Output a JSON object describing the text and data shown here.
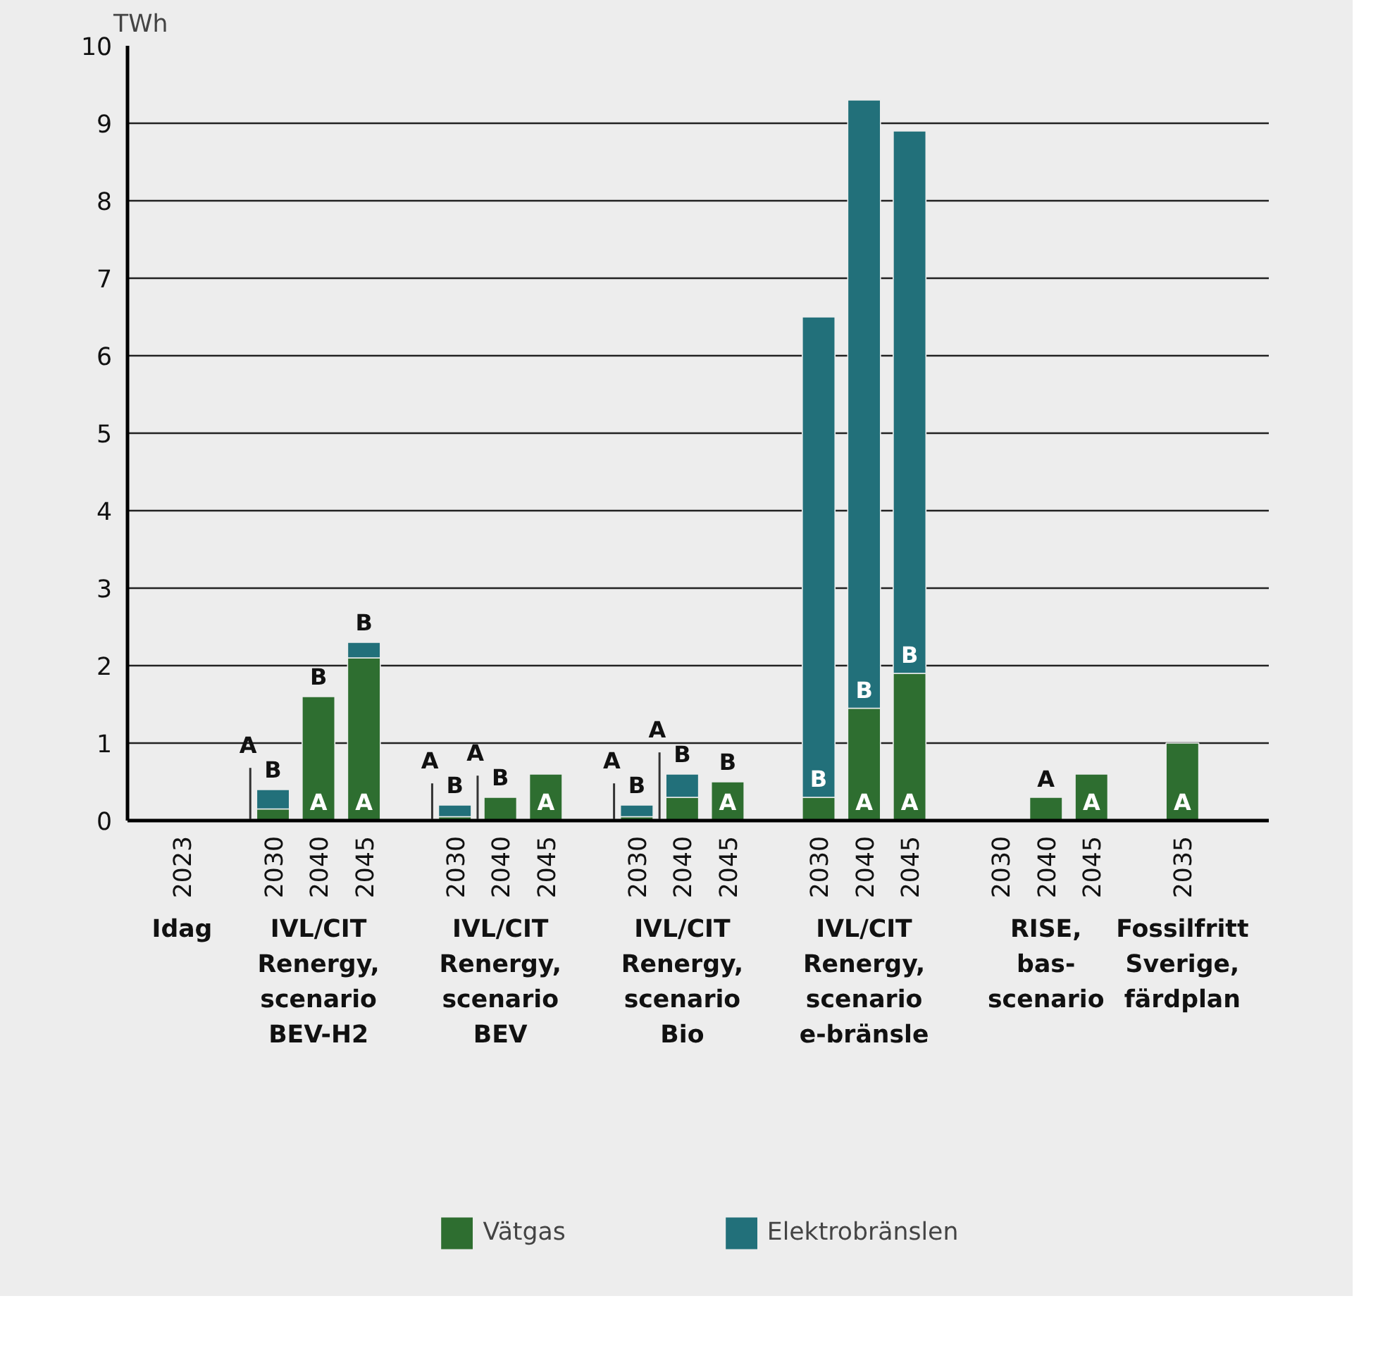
{
  "chart_data": {
    "type": "bar",
    "stacked": true,
    "ylabel": "TWh",
    "categories": [
      "2023",
      null,
      "2030",
      "2040",
      "2045",
      null,
      "2030",
      "2040",
      "2045",
      null,
      "2030",
      "2040",
      "2045",
      null,
      "2030",
      "2040",
      "2045",
      null,
      "2030",
      "2040",
      "2045",
      null,
      "2035"
    ],
    "series": [
      {
        "name": "Vätgas",
        "color": "#2e6e30",
        "values": [
          null,
          null,
          0.15,
          1.6,
          2.1,
          null,
          0.05,
          0.3,
          0.6,
          null,
          0.05,
          0.3,
          0.5,
          null,
          0.3,
          1.45,
          1.9,
          null,
          null,
          0.3,
          0.6,
          null,
          1.0
        ]
      },
      {
        "name": "Elektrobränslen",
        "color": "#22707a",
        "values": [
          null,
          null,
          0.25,
          0,
          0.2,
          null,
          0.15,
          0,
          null,
          null,
          0.15,
          0.3,
          0,
          null,
          6.2,
          7.85,
          7.0,
          null,
          null,
          null,
          null,
          null,
          null
        ]
      }
    ],
    "ylim": [
      0,
      10
    ],
    "yticks": [
      0,
      1,
      2,
      3,
      4,
      5,
      6,
      7,
      8,
      9,
      10
    ],
    "grid": "y",
    "legend": "bottom",
    "annotations": [
      "A",
      "B",
      "Idag",
      "IVL/CIT\nRenergy,\nscenario\nBEV-H2",
      "IVL/CIT\nRenergy,\nscenario\nBEV",
      "IVL/CIT\nRenergy,\nscenario\nBio",
      "IVL/CIT\nRenergy,\nscenario\ne-bränsle",
      "RISE,\nbas-\nscenario",
      "Fossilfritt\nSverige,\nfärdplan"
    ]
  }
}
